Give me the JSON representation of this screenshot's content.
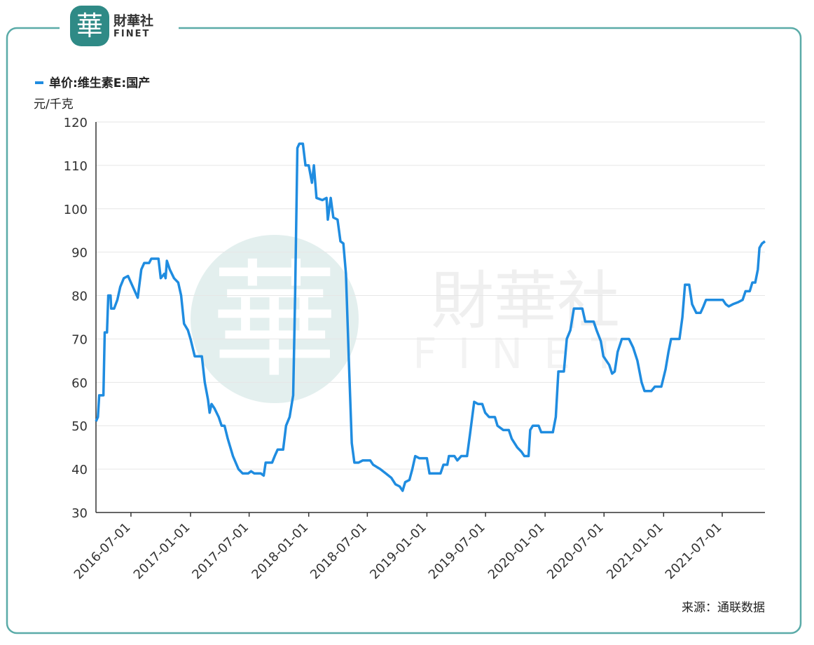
{
  "logo": {
    "mark": "華",
    "name": "財華社",
    "brand": "FINET"
  },
  "chart_data": {
    "type": "line",
    "series": [
      {
        "name": "单价:维生素E:国产",
        "color": "#1f8ce0",
        "values": [
          51,
          52,
          57,
          57,
          71.5,
          71.5,
          80,
          80,
          77,
          77,
          79,
          82,
          84,
          84.5,
          82,
          79.5,
          86,
          87.5,
          87.5,
          88.5,
          88.5,
          84,
          85,
          84,
          88,
          86,
          84,
          83,
          80,
          73.5,
          72,
          70,
          66,
          66,
          60,
          56,
          53,
          55,
          54,
          52,
          50,
          50,
          47,
          43,
          40,
          39,
          39,
          39.5,
          39,
          39,
          38.5,
          41.5,
          41.5,
          43,
          44.5,
          44.5,
          50,
          52,
          57,
          80,
          114,
          115,
          115,
          110,
          110,
          106,
          110,
          102.5,
          102,
          102.5,
          97.5,
          102.5,
          98,
          97.5,
          92.5,
          92,
          85,
          65,
          46,
          41.5,
          41.5,
          42,
          42,
          41,
          40,
          39,
          38,
          36.5,
          36,
          35,
          37,
          37.5,
          40,
          43,
          42.5,
          42.5,
          39,
          39,
          41,
          41,
          43,
          43,
          42,
          43,
          43,
          48,
          55.5,
          55,
          55,
          53,
          52,
          52,
          50,
          49,
          49,
          47,
          45,
          44,
          43,
          43,
          49,
          50,
          50,
          48.5,
          48.5,
          52,
          62.5,
          62.5,
          70,
          72,
          77,
          77,
          74,
          74,
          72,
          69.5,
          66,
          64,
          62,
          62.5,
          67,
          70,
          70,
          68,
          65,
          60,
          58,
          58,
          59,
          59,
          63,
          67,
          70,
          70,
          75,
          82.5,
          82.5,
          78,
          76,
          76,
          77.5,
          79,
          79,
          78,
          77.5,
          78,
          78.5,
          79,
          81,
          81,
          83,
          83,
          86,
          91,
          92,
          92.5
        ]
      }
    ],
    "x": [
      "2016-03-15",
      "2016-03-21",
      "2016-03-25",
      "2016-04-07",
      "2016-04-11",
      "2016-04-18",
      "2016-04-22",
      "2016-04-29",
      "2016-05-01",
      "2016-05-10",
      "2016-05-20",
      "2016-05-29",
      "2016-06-09",
      "2016-06-22",
      "2016-07-07",
      "2016-07-22",
      "2016-08-02",
      "2016-08-11",
      "2016-08-26",
      "2016-09-02",
      "2016-09-24",
      "2016-10-01",
      "2016-10-12",
      "2016-10-16",
      "2016-10-20",
      "2016-10-29",
      "2016-11-11",
      "2016-11-24",
      "2016-12-03",
      "2016-12-12",
      "2016-12-24",
      "2017-01-01",
      "2017-01-14",
      "2017-02-05",
      "2017-02-14",
      "2017-02-24",
      "2017-03-01",
      "2017-03-07",
      "2017-03-16",
      "2017-03-29",
      "2017-04-07",
      "2017-04-16",
      "2017-04-26",
      "2017-05-12",
      "2017-05-29",
      "2017-06-11",
      "2017-06-28",
      "2017-07-07",
      "2017-07-17",
      "2017-08-06",
      "2017-08-15",
      "2017-08-21",
      "2017-09-10",
      "2017-09-18",
      "2017-09-27",
      "2017-10-14",
      "2017-10-23",
      "2017-11-03",
      "2017-11-14",
      "2017-11-20",
      "2017-11-27",
      "2017-12-03",
      "2017-12-14",
      "2017-12-22",
      "2018-01-01",
      "2018-01-11",
      "2018-01-17",
      "2018-01-25",
      "2018-02-12",
      "2018-02-25",
      "2018-03-01",
      "2018-03-10",
      "2018-03-18",
      "2018-03-31",
      "2018-04-09",
      "2018-04-18",
      "2018-04-26",
      "2018-05-05",
      "2018-05-14",
      "2018-05-22",
      "2018-06-04",
      "2018-06-17",
      "2018-07-10",
      "2018-07-19",
      "2018-08-10",
      "2018-08-27",
      "2018-09-13",
      "2018-09-26",
      "2018-10-09",
      "2018-10-18",
      "2018-10-26",
      "2018-11-08",
      "2018-11-17",
      "2018-11-26",
      "2018-12-09",
      "2019-01-01",
      "2019-01-09",
      "2019-02-12",
      "2019-02-21",
      "2019-03-05",
      "2019-03-10",
      "2019-03-27",
      "2019-04-05",
      "2019-04-17",
      "2019-05-05",
      "2019-05-14",
      "2019-05-27",
      "2019-06-08",
      "2019-06-21",
      "2019-06-30",
      "2019-07-12",
      "2019-07-30",
      "2019-08-07",
      "2019-08-25",
      "2019-09-11",
      "2019-09-20",
      "2019-10-07",
      "2019-10-20",
      "2019-10-29",
      "2019-11-11",
      "2019-11-16",
      "2019-11-24",
      "2019-12-12",
      "2019-12-20",
      "2020-01-25",
      "2020-02-03",
      "2020-02-11",
      "2020-02-28",
      "2020-03-08",
      "2020-03-19",
      "2020-03-30",
      "2020-04-25",
      "2020-05-04",
      "2020-05-30",
      "2020-06-08",
      "2020-06-21",
      "2020-06-29",
      "2020-07-17",
      "2020-07-26",
      "2020-08-03",
      "2020-08-12",
      "2020-08-25",
      "2020-09-16",
      "2020-09-29",
      "2020-10-12",
      "2020-10-25",
      "2020-11-03",
      "2020-11-24",
      "2020-12-05",
      "2020-12-25",
      "2021-01-07",
      "2021-01-16",
      "2021-01-24",
      "2021-02-19",
      "2021-02-28",
      "2021-03-08",
      "2021-03-21",
      "2021-03-30",
      "2021-04-12",
      "2021-04-25",
      "2021-05-04",
      "2021-05-12",
      "2021-07-03",
      "2021-07-12",
      "2021-07-21",
      "2021-08-03",
      "2021-08-20",
      "2021-09-02",
      "2021-09-11",
      "2021-09-24",
      "2021-10-02",
      "2021-10-11",
      "2021-10-19",
      "2021-10-24",
      "2021-11-01",
      "2021-11-10"
    ],
    "xlim": [
      "2016-03-15",
      "2021-11-10"
    ],
    "xticks": [
      "2016-07-01",
      "2017-01-01",
      "2017-07-01",
      "2018-01-01",
      "2018-07-01",
      "2019-01-01",
      "2019-07-01",
      "2020-01-01",
      "2020-07-01",
      "2021-01-01",
      "2021-07-01"
    ],
    "ylim": [
      30,
      120
    ],
    "yticks": [
      30,
      40,
      50,
      60,
      70,
      80,
      90,
      100,
      110,
      120
    ],
    "y_label": "元/千克",
    "grid": true,
    "source": "来源：通联数据"
  }
}
